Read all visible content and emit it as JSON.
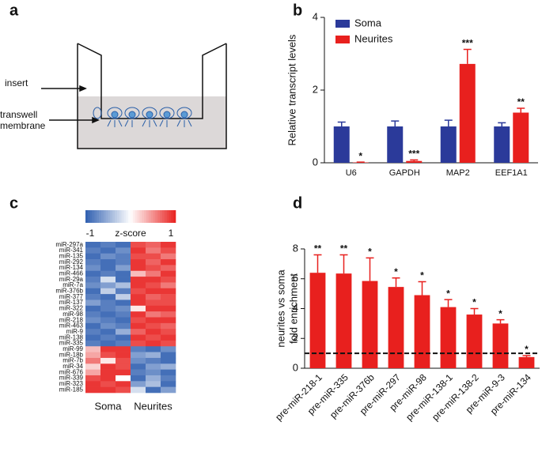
{
  "panels": [
    "a",
    "b",
    "c",
    "d"
  ],
  "diagram": {
    "insert_label": "insert",
    "membrane_label": [
      "transwell",
      "membrane"
    ]
  },
  "chart_data": [
    {
      "type": "bar",
      "ylabel": "Relative transcript levels",
      "categories": [
        "U6",
        "GAPDH",
        "MAP2",
        "EEF1A1"
      ],
      "series": [
        {
          "name": "Soma",
          "color": "#2b3a9a",
          "values": [
            1,
            1,
            1,
            1
          ],
          "errors": [
            0.12,
            0.15,
            0.17,
            0.1
          ]
        },
        {
          "name": "Neurites",
          "color": "#e8201e",
          "values": [
            0.01,
            0.05,
            2.72,
            1.38
          ],
          "errors": [
            0.01,
            0.03,
            0.4,
            0.12
          ],
          "significance": [
            "*",
            "***",
            "***",
            "**"
          ]
        }
      ],
      "ylim": [
        0,
        4
      ],
      "yticks": [
        0,
        2,
        4
      ],
      "legend": "top-left"
    },
    {
      "type": "heatmap",
      "columns": [
        "Soma",
        "Neurites"
      ],
      "clabel": "z-score",
      "clim": [
        -1,
        1
      ],
      "cticks": [
        -1,
        1
      ],
      "cmap": [
        "#2f5fb0",
        "#ffffff",
        "#e8201e"
      ],
      "rows": [
        "miR-297a",
        "miR-341",
        "miR-135",
        "miR-292",
        "miR-134",
        "miR-466",
        "miR-29a",
        "miR-7a",
        "miR-376b",
        "miR-377",
        "miR-137",
        "miR-322",
        "miR-98",
        "miR-218",
        "miR-463",
        "miR-9",
        "miR-138",
        "miR-335",
        "miR-99",
        "miR-18b",
        "miR-7b",
        "miR-34",
        "miR-676",
        "miR-339",
        "miR-323",
        "miR-185"
      ],
      "values": [
        [
          -0.9,
          -0.8,
          -0.9,
          0.8,
          0.7,
          0.9
        ],
        [
          -0.8,
          -0.9,
          -0.7,
          0.9,
          0.6,
          0.8
        ],
        [
          -0.9,
          -0.7,
          -0.8,
          0.8,
          0.8,
          0.6
        ],
        [
          -0.8,
          -0.9,
          -0.8,
          0.9,
          0.7,
          0.9
        ],
        [
          -0.7,
          -0.9,
          -0.6,
          0.9,
          0.8,
          0.7
        ],
        [
          -0.9,
          -0.8,
          -0.9,
          0.3,
          0.6,
          0.9
        ],
        [
          -0.8,
          -0.2,
          -0.9,
          0.9,
          0.9,
          0.8
        ],
        [
          -0.7,
          -0.6,
          -0.4,
          0.9,
          0.8,
          0.6
        ],
        [
          -0.9,
          -0.3,
          -0.8,
          0.8,
          0.9,
          0.9
        ],
        [
          -0.8,
          -0.9,
          -0.3,
          0.9,
          0.7,
          0.8
        ],
        [
          -0.6,
          -0.8,
          -0.9,
          0.9,
          0.8,
          0.8
        ],
        [
          -0.9,
          -0.8,
          -0.7,
          0.1,
          0.9,
          0.9
        ],
        [
          -0.8,
          -0.9,
          -0.8,
          0.9,
          0.6,
          0.7
        ],
        [
          -0.7,
          -0.8,
          -0.9,
          0.8,
          0.9,
          0.9
        ],
        [
          -0.9,
          -0.7,
          -0.8,
          0.9,
          0.8,
          0.7
        ],
        [
          -0.8,
          -0.9,
          -0.5,
          0.7,
          0.9,
          0.8
        ],
        [
          -0.9,
          -0.8,
          -0.9,
          0.9,
          0.8,
          0.9
        ],
        [
          -0.8,
          -0.9,
          -0.8,
          0.8,
          0.9,
          0.8
        ],
        [
          0.3,
          0.9,
          0.9,
          -0.8,
          -0.9,
          -0.7
        ],
        [
          0.4,
          0.8,
          0.9,
          -0.6,
          -0.5,
          -0.9
        ],
        [
          0.6,
          0.1,
          0.8,
          -0.7,
          -0.8,
          -0.9
        ],
        [
          0.2,
          0.9,
          0.8,
          -0.9,
          -0.6,
          -0.5
        ],
        [
          0.4,
          0.9,
          0.9,
          -0.8,
          -0.7,
          -0.9
        ],
        [
          0.8,
          0.9,
          0.0,
          -0.9,
          -0.5,
          -0.8
        ],
        [
          0.9,
          0.8,
          0.9,
          -0.6,
          -0.4,
          -0.9
        ],
        [
          0.9,
          0.9,
          0.8,
          -0.2,
          -0.9,
          -0.6
        ]
      ]
    },
    {
      "type": "bar",
      "ylabel": [
        "neurites vs soma",
        "fold enrichment"
      ],
      "categories": [
        "pre-miR-218-1",
        "pre-miR-335",
        "pre-miR-376b",
        "pre-miR-297",
        "pre-miR-98",
        "pre-miR-138-1",
        "pre-miR-138-2",
        "pre-miR-9-3",
        "pre-miR-134"
      ],
      "series": [
        {
          "color": "#e8201e",
          "values": [
            6.4,
            6.35,
            5.85,
            5.45,
            4.9,
            4.1,
            3.6,
            3.0,
            0.75
          ],
          "errors": [
            1.2,
            1.25,
            1.55,
            0.6,
            0.9,
            0.5,
            0.4,
            0.25,
            0.1
          ],
          "significance": [
            "**",
            "**",
            "*",
            "*",
            "*",
            "*",
            "*",
            "*",
            "*"
          ]
        }
      ],
      "ylim": [
        0,
        8
      ],
      "yticks": [
        0,
        2,
        4,
        6,
        8
      ],
      "hline": 1
    }
  ]
}
